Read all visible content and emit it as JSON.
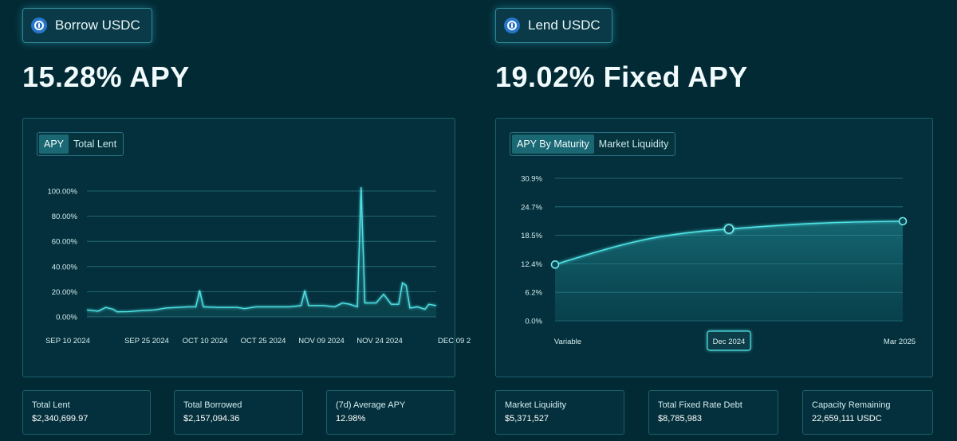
{
  "borrow": {
    "button_label": "Borrow USDC",
    "apy_headline": "15.28% APY",
    "tabs": [
      {
        "label": "APY",
        "active": true
      },
      {
        "label": "Total Lent",
        "active": false
      }
    ],
    "stats": [
      {
        "label": "Total Lent",
        "value": "$2,340,699.97"
      },
      {
        "label": "Total Borrowed",
        "value": "$2,157,094.36"
      },
      {
        "label": "(7d) Average APY",
        "value": "12.98%"
      }
    ]
  },
  "lend": {
    "button_label": "Lend USDC",
    "apy_headline": "19.02% Fixed APY",
    "tabs": [
      {
        "label": "APY By Maturity",
        "active": true
      },
      {
        "label": "Market Liquidity",
        "active": false
      }
    ],
    "stats": [
      {
        "label": "Market Liquidity",
        "value": "$5,371,527"
      },
      {
        "label": "Total Fixed Rate Debt",
        "value": "$8,785,983"
      },
      {
        "label": "Capacity Remaining",
        "value": "22,659,111 USDC"
      }
    ]
  },
  "colors": {
    "background": "#022a35",
    "accent": "#4fe3e6",
    "panel_border": "#1f5f6c"
  },
  "icons": [
    "usdc-icon"
  ],
  "chart_data": [
    {
      "type": "line",
      "ylim": [
        0,
        100
      ],
      "y_tick_labels": [
        "0.00%",
        "20.00%",
        "40.00%",
        "60.00%",
        "80.00%",
        "100.00%"
      ],
      "x_tick_labels": [
        "SEP 10 2024",
        "SEP 25 2024",
        "OCT 10 2024",
        "OCT 25 2024",
        "NOV 09 2024",
        "NOV 24 2024",
        "DEC 09 2"
      ],
      "x_range": [
        "2024-09-10",
        "2024-12-12"
      ],
      "grid": true,
      "series": [
        {
          "values": [
            [
              "2024-09-10",
              5.5
            ],
            [
              "2024-09-13",
              4.5
            ],
            [
              "2024-09-15",
              7.5
            ],
            [
              "2024-09-17",
              6
            ],
            [
              "2024-09-18",
              4
            ],
            [
              "2024-09-21",
              4.2
            ],
            [
              "2024-09-25",
              5
            ],
            [
              "2024-09-28",
              5.5
            ],
            [
              "2024-10-01",
              7
            ],
            [
              "2024-10-04",
              7.5
            ],
            [
              "2024-10-07",
              8
            ],
            [
              "2024-10-09",
              8
            ],
            [
              "2024-10-10",
              21
            ],
            [
              "2024-10-11",
              8
            ],
            [
              "2024-10-15",
              7.5
            ],
            [
              "2024-10-20",
              7.5
            ],
            [
              "2024-10-22",
              6.5
            ],
            [
              "2024-10-25",
              8
            ],
            [
              "2024-10-30",
              8
            ],
            [
              "2024-11-03",
              8
            ],
            [
              "2024-11-06",
              9
            ],
            [
              "2024-11-07",
              21
            ],
            [
              "2024-11-08",
              9
            ],
            [
              "2024-11-12",
              9
            ],
            [
              "2024-11-15",
              8
            ],
            [
              "2024-11-17",
              11
            ],
            [
              "2024-11-19",
              10
            ],
            [
              "2024-11-21",
              8
            ],
            [
              "2024-11-22",
              103
            ],
            [
              "2024-11-23",
              11
            ],
            [
              "2024-11-26",
              11
            ],
            [
              "2024-11-28",
              18
            ],
            [
              "2024-11-30",
              10
            ],
            [
              "2024-12-02",
              10
            ],
            [
              "2024-12-03",
              27
            ],
            [
              "2024-12-04",
              25
            ],
            [
              "2024-12-05",
              7
            ],
            [
              "2024-12-07",
              8
            ],
            [
              "2024-12-09",
              6
            ],
            [
              "2024-12-10",
              10
            ],
            [
              "2024-12-12",
              9
            ]
          ]
        }
      ]
    },
    {
      "type": "area",
      "ylim": [
        0,
        30.9
      ],
      "y_tick_labels": [
        "0.0%",
        "6.2%",
        "12.4%",
        "18.5%",
        "24.7%",
        "30.9%"
      ],
      "categories": [
        "Variable",
        "Dec 2024",
        "Mar 2025"
      ],
      "x_positions": [
        0,
        0.5,
        1
      ],
      "values": [
        12.2,
        19.9,
        21.6
      ],
      "highlighted_category": "Dec 2024",
      "grid": true
    }
  ]
}
